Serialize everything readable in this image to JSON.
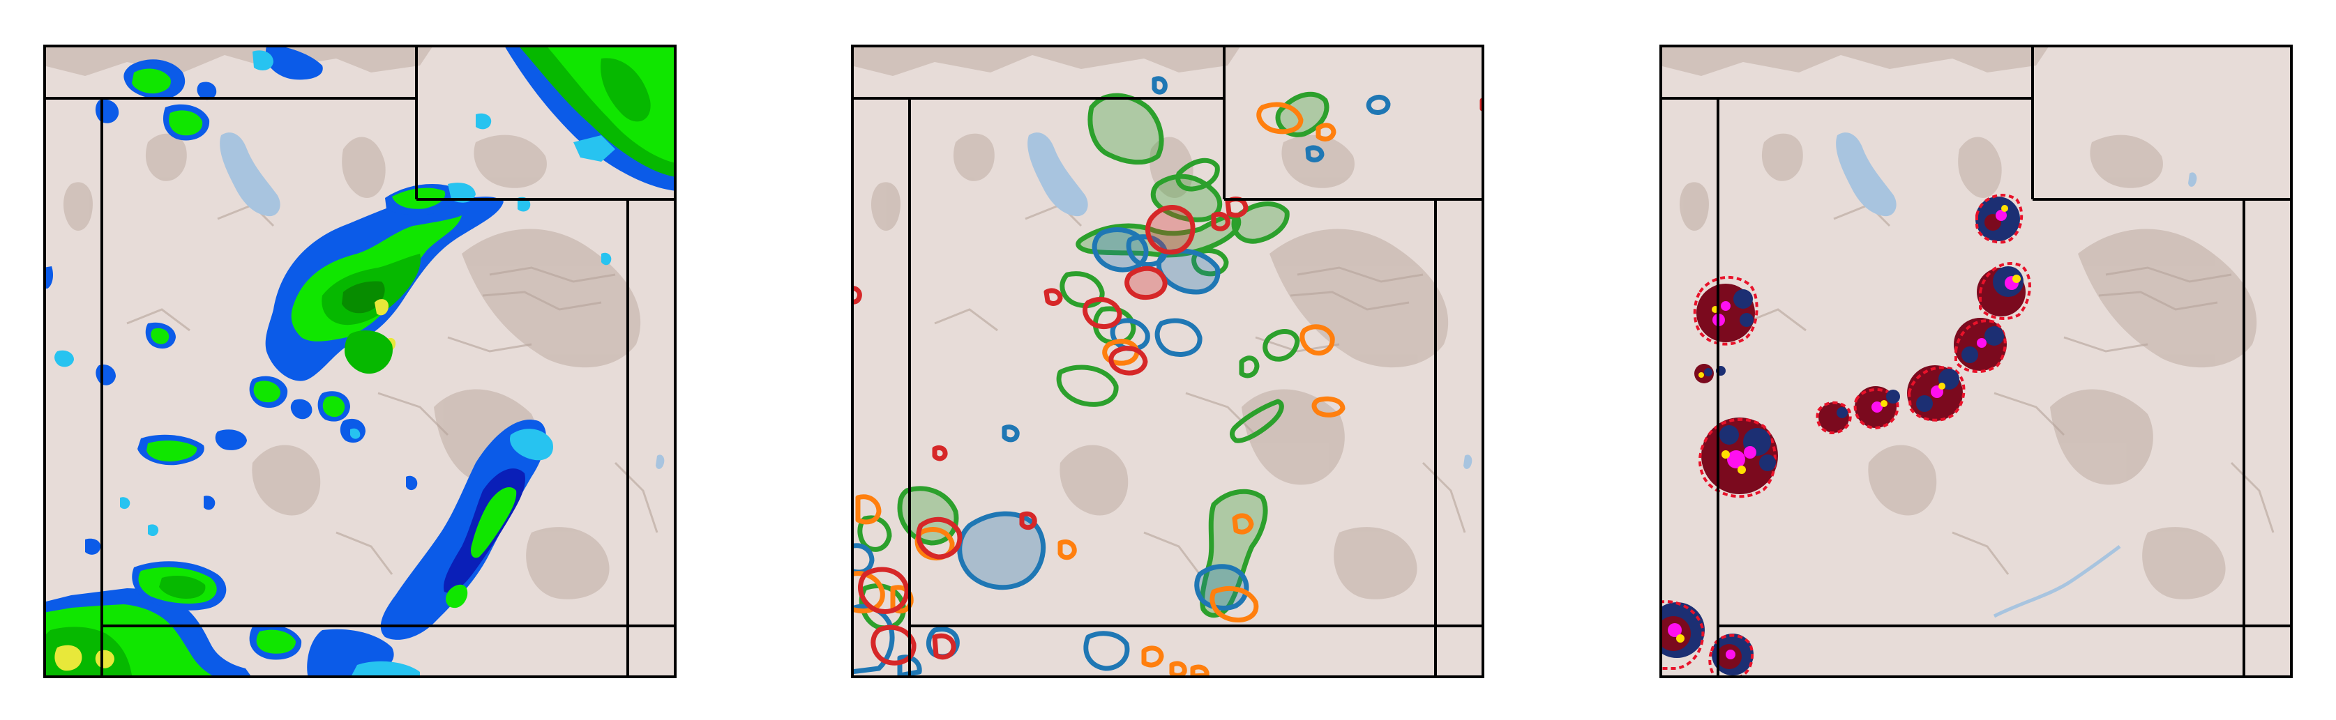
{
  "figure": {
    "panels": [
      {
        "id": "reflectivity",
        "content": "radar-reflectivity-contour-fill",
        "colors": {
          "light_blue": "#27c3f0",
          "blue": "#0b5be8",
          "dark_blue": "#0a1fb8",
          "bright_green": "#10e600",
          "green": "#06b800",
          "dark_green": "#078c00",
          "yellow": "#e8e83a"
        }
      },
      {
        "id": "object-outlines",
        "content": "storm-object-outlines",
        "colors": {
          "green": "#2ca02c",
          "blue": "#1f77b4",
          "orange": "#ff7f0e",
          "red": "#d62728"
        }
      },
      {
        "id": "storm-cells",
        "content": "storm-cell-points",
        "colors": {
          "navy": "#1c2f73",
          "maroon": "#7b0a1e",
          "red": "#e8122a",
          "magenta": "#ff10f0",
          "yellow": "#ffe000"
        }
      }
    ],
    "map_colors": {
      "background": "#e7dcd8",
      "terrain": "#c9b9b1",
      "terrain_dark": "#b5a39a",
      "water": "#a8c4df",
      "boundary": "#000000"
    },
    "icons": [
      "lake-icon",
      "state-boundary-icon"
    ]
  }
}
